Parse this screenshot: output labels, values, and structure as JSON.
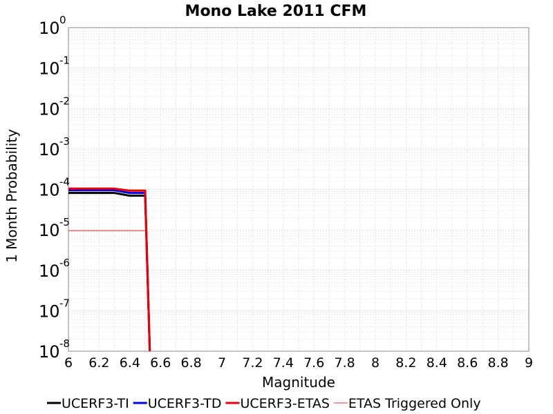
{
  "chart_data": {
    "type": "line",
    "title": "Mono Lake 2011 CFM",
    "xlabel": "Magnitude",
    "ylabel": "1 Month Probability",
    "xlim": [
      6,
      9
    ],
    "ylim": [
      1e-08,
      1
    ],
    "yscale": "log",
    "grid": true,
    "legend_position": "bottom",
    "x_ticks": [
      "6",
      "6.2",
      "6.4",
      "6.6",
      "6.8",
      "7",
      "7.2",
      "7.4",
      "7.6",
      "7.8",
      "8",
      "8.2",
      "8.4",
      "8.6",
      "8.8",
      "9"
    ],
    "y_ticks": [
      {
        "base": "10",
        "exp": "0"
      },
      {
        "base": "10",
        "exp": "-1"
      },
      {
        "base": "10",
        "exp": "-2"
      },
      {
        "base": "10",
        "exp": "-3"
      },
      {
        "base": "10",
        "exp": "-4"
      },
      {
        "base": "10",
        "exp": "-5"
      },
      {
        "base": "10",
        "exp": "-6"
      },
      {
        "base": "10",
        "exp": "-7"
      },
      {
        "base": "10",
        "exp": "-8"
      }
    ],
    "series": [
      {
        "name": "UCERF3-TI",
        "color": "#000000",
        "width": 3,
        "x": [
          6.0,
          6.1,
          6.2,
          6.3,
          6.4,
          6.5,
          6.53
        ],
        "y": [
          8.2e-05,
          8.2e-05,
          8.2e-05,
          8.2e-05,
          7e-05,
          7e-05,
          1e-08
        ]
      },
      {
        "name": "UCERF3-TD",
        "color": "#0000dd",
        "width": 3,
        "x": [
          6.0,
          6.1,
          6.2,
          6.3,
          6.4,
          6.5,
          6.53
        ],
        "y": [
          9.5e-05,
          9.5e-05,
          9.5e-05,
          9.5e-05,
          8.2e-05,
          8.2e-05,
          1e-08
        ]
      },
      {
        "name": "UCERF3-ETAS",
        "color": "#ee0000",
        "width": 3,
        "x": [
          6.0,
          6.1,
          6.2,
          6.3,
          6.4,
          6.5,
          6.53
        ],
        "y": [
          0.000105,
          0.000105,
          0.000105,
          0.000105,
          9.3e-05,
          9.3e-05,
          1e-08
        ]
      },
      {
        "name": "ETAS Triggered Only",
        "color": "#ff5555",
        "width": 1.2,
        "x": [
          6.0,
          6.1,
          6.2,
          6.3,
          6.4,
          6.5
        ],
        "y": [
          9.5e-06,
          9.5e-06,
          9.5e-06,
          9.5e-06,
          9.5e-06,
          9.5e-06
        ]
      }
    ]
  }
}
